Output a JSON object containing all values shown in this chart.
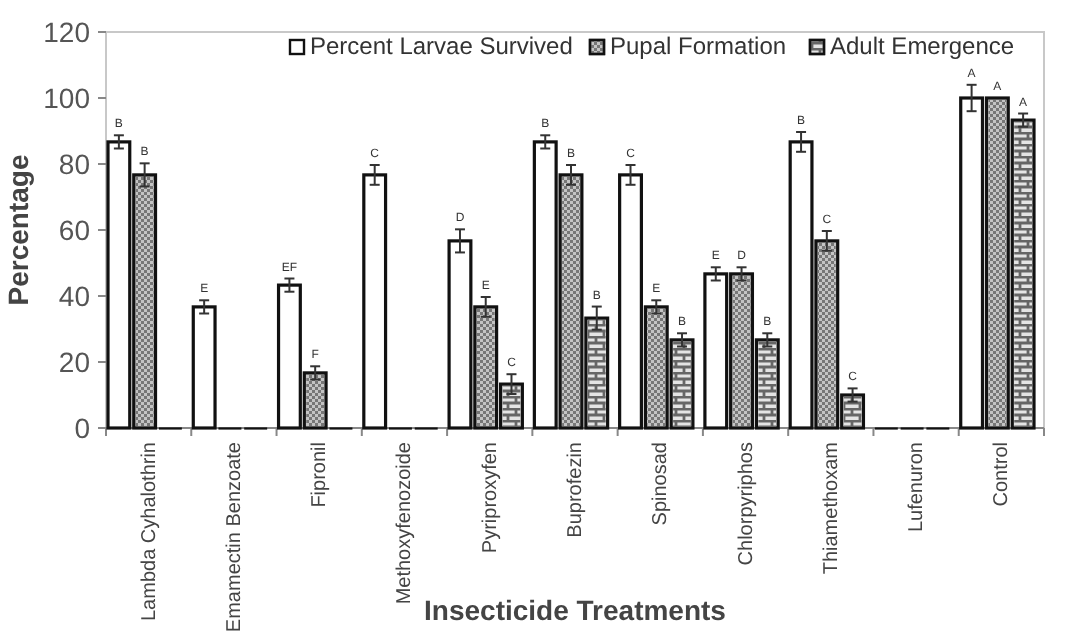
{
  "chart_data": {
    "type": "bar",
    "xlabel": "Insecticide Treatments",
    "ylabel": "Percentage",
    "categories": [
      "Lambda Cyhalothrin",
      "Emamectin Benzoate",
      "Fipronil",
      "Methoxyfenozoide",
      "Pyriproxyfen",
      "Buprofezin",
      "Spinosad",
      "Chlorpyriphos",
      "Thiamethoxam",
      "Lufenuron",
      "Control"
    ],
    "series": [
      {
        "name": "Percent Larvae Survived",
        "color": "#ffffff",
        "values": [
          86.7,
          36.7,
          43.3,
          76.7,
          56.7,
          86.7,
          76.7,
          46.7,
          86.7,
          0,
          100
        ],
        "errors": [
          2,
          2,
          2,
          3,
          3.5,
          2,
          3,
          2,
          3,
          null,
          4
        ],
        "value_labels": [
          "B",
          "E",
          "EF",
          "C",
          "D",
          "B",
          "C",
          "E",
          "B",
          null,
          "A"
        ]
      },
      {
        "name": "Pupal Formation",
        "color": "#c4c4c4",
        "values": [
          76.7,
          0,
          16.7,
          0,
          36.7,
          76.7,
          36.7,
          46.7,
          56.7,
          0,
          100
        ],
        "errors": [
          3.5,
          null,
          2,
          null,
          3,
          3,
          2,
          2,
          3,
          null,
          null
        ],
        "value_labels": [
          "B",
          null,
          "F",
          null,
          "E",
          "B",
          "E",
          "D",
          "C",
          null,
          "A"
        ]
      },
      {
        "name": "Adult Emergence",
        "color": "#e4e4e4",
        "values": [
          0,
          0,
          0,
          0,
          13.3,
          33.3,
          26.7,
          26.7,
          10,
          0,
          93.3
        ],
        "errors": [
          null,
          null,
          null,
          null,
          3,
          3.5,
          2,
          2,
          2,
          null,
          2
        ],
        "value_labels": [
          null,
          null,
          null,
          null,
          "C",
          "B",
          "B",
          "B",
          "C",
          null,
          "A"
        ]
      }
    ],
    "ylim": [
      0,
      120
    ],
    "yticks": [
      0,
      20,
      40,
      60,
      80,
      100,
      120
    ],
    "legend": "top"
  }
}
